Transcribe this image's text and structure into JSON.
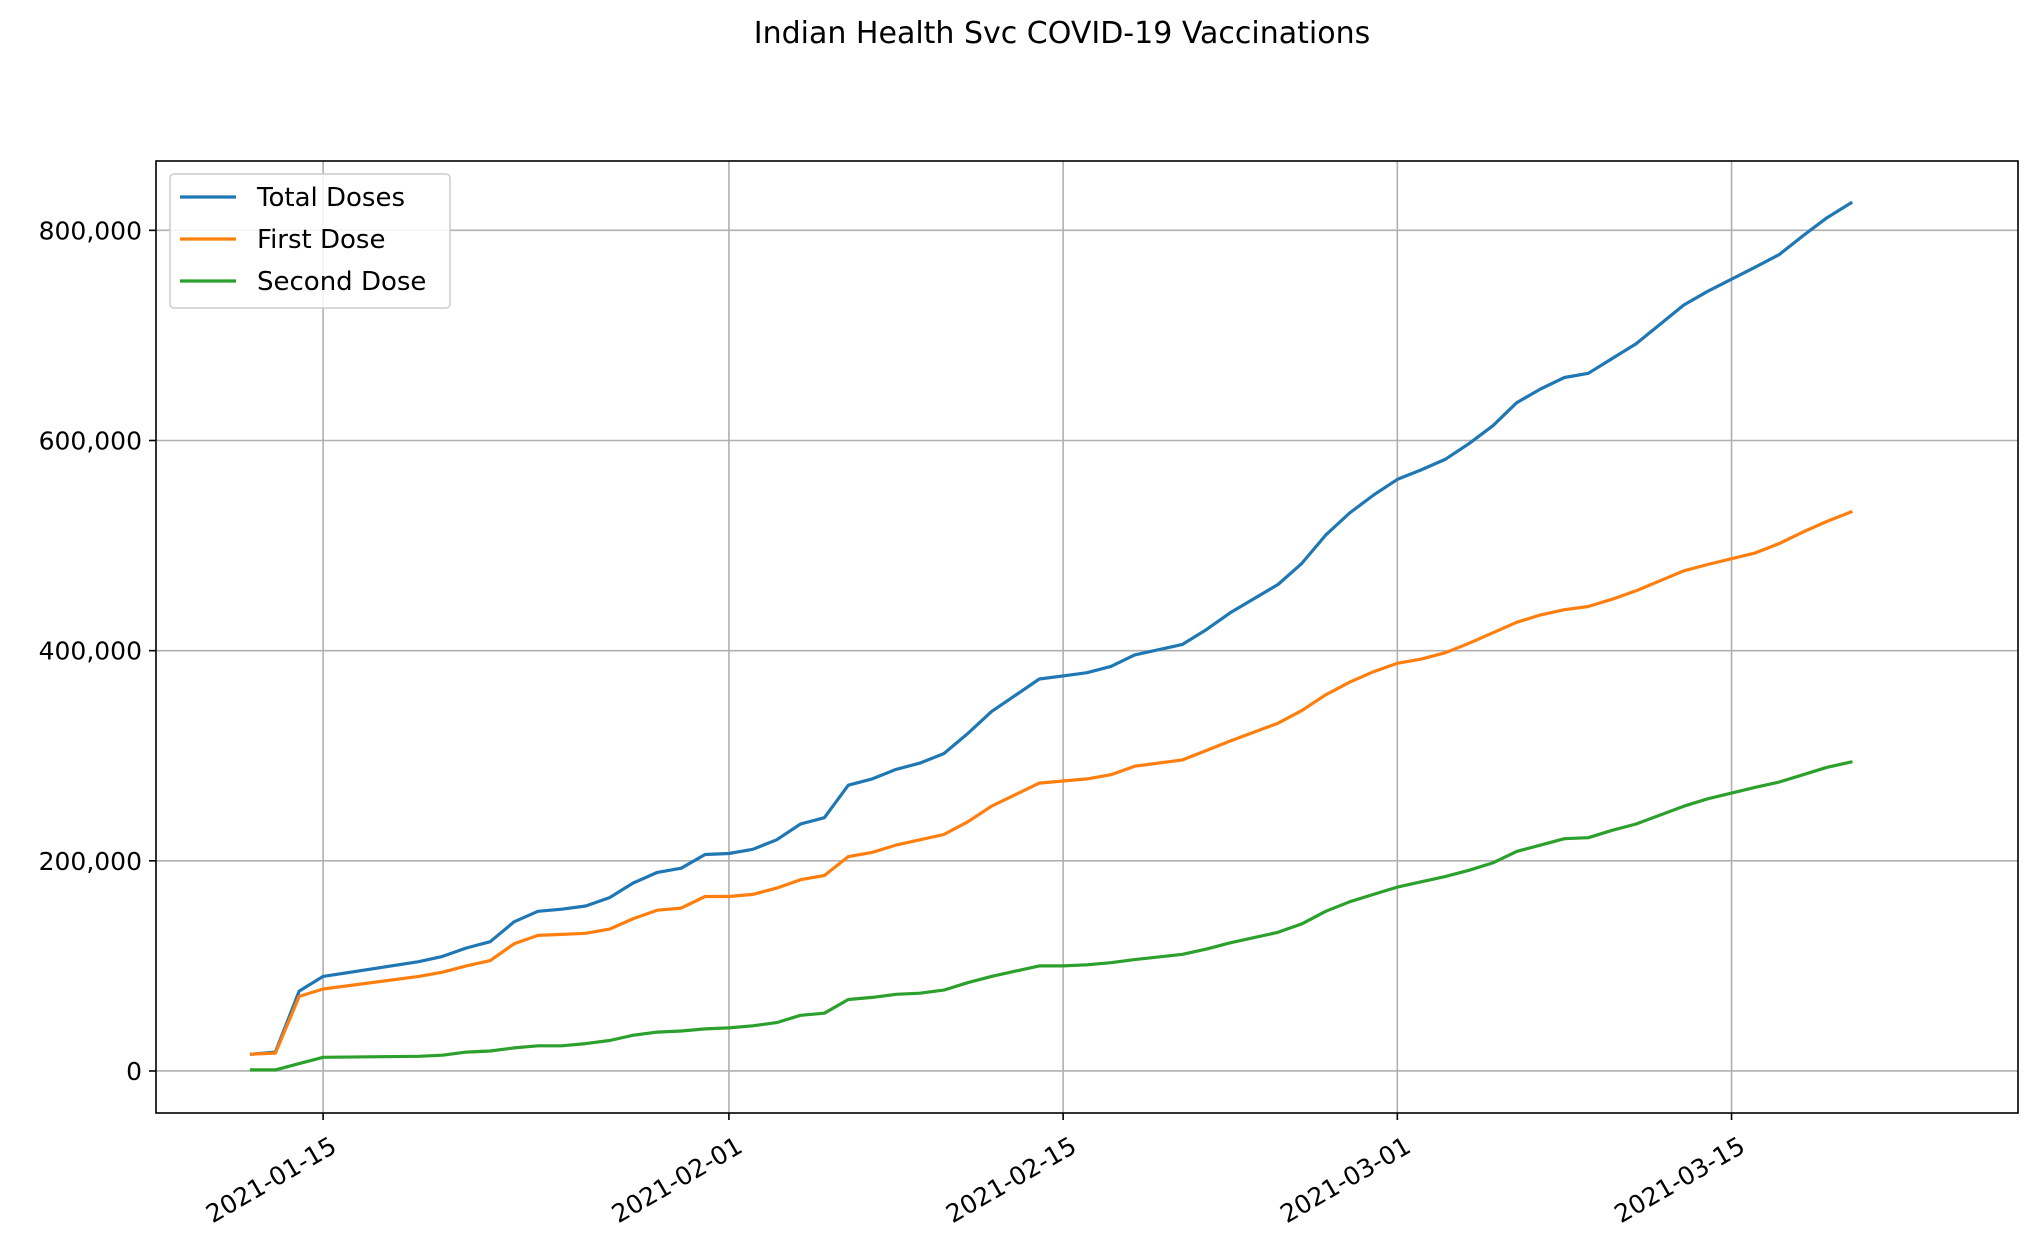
{
  "chart_data": {
    "type": "line",
    "title": "Indian Health Svc COVID-19 Vaccinations",
    "xlabel": "",
    "ylabel": "",
    "x_axis": "date",
    "xlim": [
      "2021-01-08",
      "2021-03-27"
    ],
    "ylim": [
      -40000,
      866000
    ],
    "x_ticks": [
      "2021-01-15",
      "2021-02-01",
      "2021-02-15",
      "2021-03-01",
      "2021-03-15"
    ],
    "y_ticks": [
      0,
      200000,
      400000,
      600000,
      800000
    ],
    "y_tick_labels": [
      "0",
      "200,000",
      "400,000",
      "600,000",
      "800,000"
    ],
    "grid": true,
    "legend_position": "top-left",
    "x": [
      "2021-01-12",
      "2021-01-13",
      "2021-01-14",
      "2021-01-15",
      "2021-01-19",
      "2021-01-20",
      "2021-01-21",
      "2021-01-22",
      "2021-01-23",
      "2021-01-24",
      "2021-01-25",
      "2021-01-26",
      "2021-01-27",
      "2021-01-28",
      "2021-01-29",
      "2021-01-30",
      "2021-01-31",
      "2021-02-01",
      "2021-02-02",
      "2021-02-03",
      "2021-02-04",
      "2021-02-05",
      "2021-02-06",
      "2021-02-07",
      "2021-02-08",
      "2021-02-09",
      "2021-02-10",
      "2021-02-11",
      "2021-02-12",
      "2021-02-14",
      "2021-02-15",
      "2021-02-16",
      "2021-02-17",
      "2021-02-18",
      "2021-02-20",
      "2021-02-21",
      "2021-02-22",
      "2021-02-24",
      "2021-02-25",
      "2021-02-26",
      "2021-02-27",
      "2021-02-28",
      "2021-03-01",
      "2021-03-02",
      "2021-03-03",
      "2021-03-04",
      "2021-03-05",
      "2021-03-06",
      "2021-03-07",
      "2021-03-08",
      "2021-03-09",
      "2021-03-10",
      "2021-03-11",
      "2021-03-13",
      "2021-03-14",
      "2021-03-16",
      "2021-03-17",
      "2021-03-18",
      "2021-03-19",
      "2021-03-20"
    ],
    "series": [
      {
        "name": "Total Doses",
        "color": "#1f77b4",
        "values": [
          16000,
          18000,
          76000,
          90000,
          104000,
          109000,
          117000,
          123000,
          142000,
          152000,
          154000,
          157000,
          165000,
          179000,
          189000,
          193000,
          206000,
          207000,
          211000,
          220000,
          235000,
          241000,
          272000,
          278000,
          287000,
          293000,
          302000,
          321000,
          342000,
          373000,
          376000,
          379000,
          385000,
          396000,
          406000,
          420000,
          436000,
          463000,
          483000,
          510000,
          531000,
          548000,
          563000,
          572000,
          582000,
          597000,
          614000,
          636000,
          649000,
          660000,
          664000,
          678000,
          692000,
          729000,
          742000,
          765000,
          777000,
          795000,
          812000,
          826000
        ]
      },
      {
        "name": "First Dose",
        "color": "#ff7f0e",
        "values": [
          16000,
          17000,
          71000,
          78000,
          90000,
          94000,
          100000,
          105000,
          121000,
          129000,
          130000,
          131000,
          135000,
          145000,
          153000,
          155000,
          166000,
          166000,
          168000,
          174000,
          182000,
          186000,
          204000,
          208000,
          215000,
          220000,
          225000,
          237000,
          252000,
          274000,
          276000,
          278000,
          282000,
          290000,
          296000,
          305000,
          314000,
          331000,
          343000,
          358000,
          370000,
          380000,
          388000,
          392000,
          398000,
          407000,
          417000,
          427000,
          434000,
          439000,
          442000,
          449000,
          457000,
          476000,
          482000,
          493000,
          502000,
          513000,
          523000,
          532000
        ]
      },
      {
        "name": "Second Dose",
        "color": "#2ca02c",
        "values": [
          1000,
          1000,
          7000,
          13000,
          14000,
          15000,
          18000,
          19000,
          22000,
          24000,
          24000,
          26000,
          29000,
          34000,
          37000,
          38000,
          40000,
          41000,
          43000,
          46000,
          53000,
          55000,
          68000,
          70000,
          73000,
          74000,
          77000,
          84000,
          90000,
          100000,
          100000,
          101000,
          103000,
          106000,
          111000,
          116000,
          122000,
          132000,
          140000,
          152000,
          161000,
          168000,
          175000,
          180000,
          185000,
          191000,
          198000,
          209000,
          215000,
          221000,
          222000,
          229000,
          235000,
          252000,
          259000,
          270000,
          275000,
          282000,
          289000,
          294000
        ]
      }
    ]
  }
}
